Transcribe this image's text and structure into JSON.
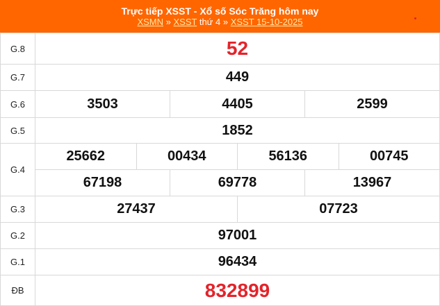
{
  "header": {
    "title": "Trực tiếp XSST - Xổ số Sóc Trăng hôm nay",
    "crumb1": "XSMN",
    "sep": "»",
    "crumb2": "XSST",
    "crumb2_suffix": "thứ 4",
    "crumb3": "XSST 15-10-2025"
  },
  "colors": {
    "header": "#ff6600",
    "highlight": "#e3242b"
  },
  "prizes": {
    "g8": {
      "label": "G.8",
      "values": [
        "52"
      ]
    },
    "g7": {
      "label": "G.7",
      "values": [
        "449"
      ]
    },
    "g6": {
      "label": "G.6",
      "values": [
        "3503",
        "4405",
        "2599"
      ]
    },
    "g5": {
      "label": "G.5",
      "values": [
        "1852"
      ]
    },
    "g4": {
      "label": "G.4",
      "values": [
        "25662",
        "00434",
        "56136",
        "00745",
        "67198",
        "69778",
        "13967"
      ]
    },
    "g3": {
      "label": "G.3",
      "values": [
        "27437",
        "07723"
      ]
    },
    "g2": {
      "label": "G.2",
      "values": [
        "97001"
      ]
    },
    "g1": {
      "label": "G.1",
      "values": [
        "96434"
      ]
    },
    "db": {
      "label": "ĐB",
      "values": [
        "832899"
      ]
    }
  }
}
